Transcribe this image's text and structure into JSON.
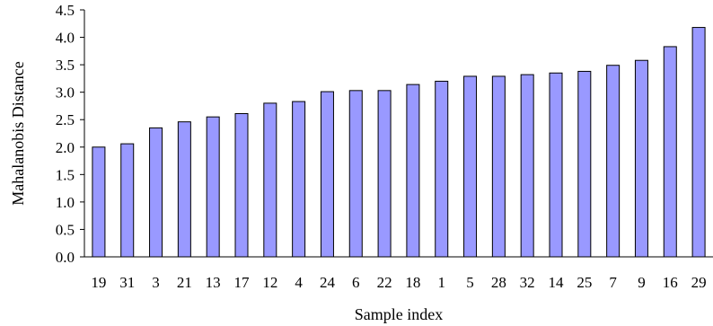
{
  "chart_data": {
    "type": "bar",
    "title": "",
    "xlabel": "Sample index",
    "ylabel": "Mahalanobis Distance",
    "categories": [
      "19",
      "31",
      "3",
      "21",
      "13",
      "17",
      "12",
      "4",
      "24",
      "6",
      "22",
      "18",
      "1",
      "5",
      "28",
      "32",
      "14",
      "25",
      "7",
      "9",
      "16",
      "29"
    ],
    "values": [
      2.0,
      2.06,
      2.35,
      2.46,
      2.55,
      2.61,
      2.8,
      2.83,
      3.01,
      3.03,
      3.03,
      3.14,
      3.2,
      3.29,
      3.29,
      3.32,
      3.35,
      3.38,
      3.49,
      3.58,
      3.83,
      4.18
    ],
    "ylim": [
      0,
      4.5
    ],
    "yticks": [
      "0.0",
      "0.5",
      "1.0",
      "1.5",
      "2.0",
      "2.5",
      "3.0",
      "3.5",
      "4.0",
      "4.5"
    ],
    "grid": false,
    "legend": "none",
    "colors": {
      "bar_fill": "#9999ff",
      "bar_stroke": "#000000",
      "axis": "#000000"
    }
  }
}
